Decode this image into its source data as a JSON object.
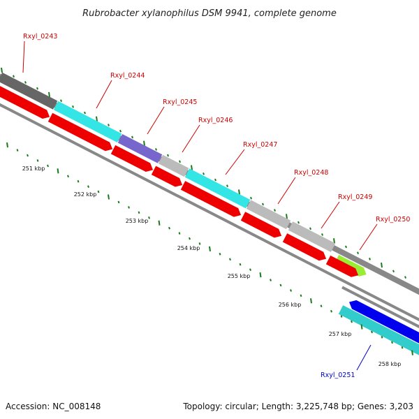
{
  "title": "Rubrobacter xylanophilus DSM 9941, complete genome",
  "footer": {
    "accession": "Accession: NC_008148",
    "topology": "Topology: circular; Length: 3,225,748 bp; Genes: 3,203"
  },
  "colors": {
    "forward_label": "#cc0000",
    "reverse_label": "#0000cc",
    "backbone": "#888888",
    "tick": "#1a7a1a"
  },
  "kbp_labels": [
    "251 kbp",
    "252 kbp",
    "253 kbp",
    "254 kbp",
    "255 kbp",
    "256 kbp",
    "257 kbp",
    "258 kbp"
  ],
  "genes": [
    {
      "name": "Rxyl_0243",
      "strand": "forward",
      "color": "#666666"
    },
    {
      "name": "Rxyl_0244",
      "strand": "forward",
      "color": "#33e5e5"
    },
    {
      "name": "Rxyl_0245",
      "strand": "forward",
      "color": "#7766cc"
    },
    {
      "name": "Rxyl_0246",
      "strand": "forward",
      "color": "#bbbbbb"
    },
    {
      "name": "Rxyl_0247",
      "strand": "forward",
      "color": "#33e5e5"
    },
    {
      "name": "Rxyl_0248",
      "strand": "forward",
      "color": "#bbbbbb"
    },
    {
      "name": "Rxyl_0249",
      "strand": "forward",
      "color": "#bbbbbb"
    },
    {
      "name": "Rxyl_0250",
      "strand": "forward",
      "color": "#99ee33"
    },
    {
      "name": "Rxyl_0251",
      "strand": "reverse",
      "color": "#33cccc"
    }
  ],
  "reverse_blue_color": "#0000ee",
  "cds_color": "#ee0000"
}
